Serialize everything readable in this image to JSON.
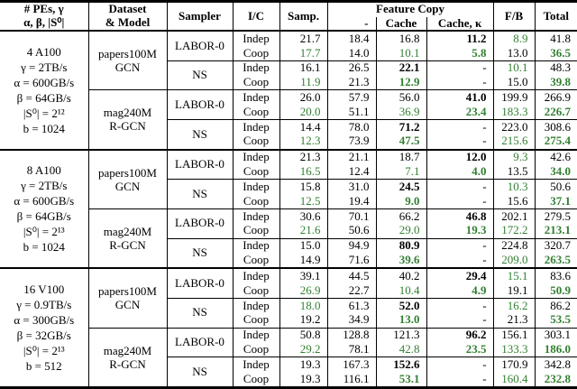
{
  "table": {
    "header": {
      "col1_line1": "# PEs, γ",
      "col1_line2": "α, β, |S⁰|",
      "dataset_line1": "Dataset",
      "dataset_line2": "& Model",
      "sampler": "Sampler",
      "ic": "I/C",
      "samp": "Samp.",
      "feature_copy": "Feature Copy",
      "fc_sub": [
        "-",
        "Cache",
        "Cache, κ"
      ],
      "fb": "F/B",
      "total": "Total"
    },
    "accent_green": "#338033",
    "groups": [
      {
        "config": [
          "4 A100",
          "γ = 2TB/s",
          "α = 600GB/s",
          "β = 64GB/s",
          "|S⁰| = 2¹²",
          "b = 1024"
        ],
        "datasets": [
          [
            "papers100M",
            "GCN"
          ],
          [
            "mag240M",
            "R-GCN"
          ]
        ],
        "samplers": [
          "LABOR-0",
          "NS",
          "LABOR-0",
          "NS"
        ],
        "rows": [
          {
            "ic": "Indep",
            "v": [
              [
                "21.7",
                ""
              ],
              [
                "18.4",
                ""
              ],
              [
                "16.8",
                ""
              ],
              [
                "11.2",
                "b"
              ],
              [
                "8.9",
                "g"
              ],
              [
                "41.8",
                ""
              ]
            ]
          },
          {
            "ic": "Coop",
            "v": [
              [
                "17.7",
                "g"
              ],
              [
                "14.0",
                ""
              ],
              [
                "10.1",
                "g"
              ],
              [
                "5.8",
                "gb"
              ],
              [
                "13.0",
                ""
              ],
              [
                "36.5",
                "gb"
              ]
            ]
          },
          {
            "ic": "Indep",
            "v": [
              [
                "16.1",
                ""
              ],
              [
                "26.5",
                ""
              ],
              [
                "22.1",
                "b"
              ],
              [
                "-",
                ""
              ],
              [
                "10.1",
                "g"
              ],
              [
                "48.3",
                ""
              ]
            ]
          },
          {
            "ic": "Coop",
            "v": [
              [
                "11.9",
                "g"
              ],
              [
                "21.3",
                ""
              ],
              [
                "12.9",
                "gb"
              ],
              [
                "-",
                ""
              ],
              [
                "15.0",
                ""
              ],
              [
                "39.8",
                "gb"
              ]
            ]
          },
          {
            "ic": "Indep",
            "v": [
              [
                "26.0",
                ""
              ],
              [
                "57.9",
                ""
              ],
              [
                "56.0",
                ""
              ],
              [
                "41.0",
                "b"
              ],
              [
                "199.9",
                ""
              ],
              [
                "266.9",
                ""
              ]
            ]
          },
          {
            "ic": "Coop",
            "v": [
              [
                "20.0",
                "g"
              ],
              [
                "51.1",
                ""
              ],
              [
                "36.9",
                "g"
              ],
              [
                "23.4",
                "gb"
              ],
              [
                "183.3",
                "g"
              ],
              [
                "226.7",
                "gb"
              ]
            ]
          },
          {
            "ic": "Indep",
            "v": [
              [
                "14.4",
                ""
              ],
              [
                "78.0",
                ""
              ],
              [
                "71.2",
                "b"
              ],
              [
                "-",
                ""
              ],
              [
                "223.0",
                ""
              ],
              [
                "308.6",
                ""
              ]
            ]
          },
          {
            "ic": "Coop",
            "v": [
              [
                "12.3",
                "g"
              ],
              [
                "73.9",
                ""
              ],
              [
                "47.5",
                "gb"
              ],
              [
                "-",
                ""
              ],
              [
                "215.6",
                "g"
              ],
              [
                "275.4",
                "gb"
              ]
            ]
          }
        ]
      },
      {
        "config": [
          "8 A100",
          "γ = 2TB/s",
          "α = 600GB/s",
          "β = 64GB/s",
          "|S⁰| = 2¹³",
          "b = 1024"
        ],
        "datasets": [
          [
            "papers100M",
            "GCN"
          ],
          [
            "mag240M",
            "R-GCN"
          ]
        ],
        "samplers": [
          "LABOR-0",
          "NS",
          "LABOR-0",
          "NS"
        ],
        "rows": [
          {
            "ic": "Indep",
            "v": [
              [
                "21.3",
                ""
              ],
              [
                "21.1",
                ""
              ],
              [
                "18.7",
                ""
              ],
              [
                "12.0",
                "b"
              ],
              [
                "9.3",
                "g"
              ],
              [
                "42.6",
                ""
              ]
            ]
          },
          {
            "ic": "Coop",
            "v": [
              [
                "16.5",
                "g"
              ],
              [
                "12.4",
                ""
              ],
              [
                "7.1",
                "g"
              ],
              [
                "4.0",
                "gb"
              ],
              [
                "13.5",
                ""
              ],
              [
                "34.0",
                "gb"
              ]
            ]
          },
          {
            "ic": "Indep",
            "v": [
              [
                "15.8",
                ""
              ],
              [
                "31.0",
                ""
              ],
              [
                "24.5",
                "b"
              ],
              [
                "-",
                ""
              ],
              [
                "10.3",
                "g"
              ],
              [
                "50.6",
                ""
              ]
            ]
          },
          {
            "ic": "Coop",
            "v": [
              [
                "12.5",
                "g"
              ],
              [
                "19.4",
                ""
              ],
              [
                "9.0",
                "gb"
              ],
              [
                "-",
                ""
              ],
              [
                "15.6",
                ""
              ],
              [
                "37.1",
                "gb"
              ]
            ]
          },
          {
            "ic": "Indep",
            "v": [
              [
                "30.6",
                ""
              ],
              [
                "70.1",
                ""
              ],
              [
                "66.2",
                ""
              ],
              [
                "46.8",
                "b"
              ],
              [
                "202.1",
                ""
              ],
              [
                "279.5",
                ""
              ]
            ]
          },
          {
            "ic": "Coop",
            "v": [
              [
                "21.6",
                "g"
              ],
              [
                "50.6",
                ""
              ],
              [
                "29.0",
                "g"
              ],
              [
                "19.3",
                "gb"
              ],
              [
                "172.2",
                "g"
              ],
              [
                "213.1",
                "gb"
              ]
            ]
          },
          {
            "ic": "Indep",
            "v": [
              [
                "15.0",
                ""
              ],
              [
                "94.9",
                ""
              ],
              [
                "80.9",
                "b"
              ],
              [
                "-",
                ""
              ],
              [
                "224.8",
                ""
              ],
              [
                "320.7",
                ""
              ]
            ]
          },
          {
            "ic": "Coop",
            "v": [
              [
                "14.9",
                ""
              ],
              [
                "71.6",
                ""
              ],
              [
                "39.6",
                "gb"
              ],
              [
                "-",
                ""
              ],
              [
                "209.0",
                "g"
              ],
              [
                "263.5",
                "gb"
              ]
            ]
          }
        ]
      },
      {
        "config": [
          "16 V100",
          "γ = 0.9TB/s",
          "α = 300GB/s",
          "β = 32GB/s",
          "|S⁰| = 2¹³",
          "b = 512"
        ],
        "datasets": [
          [
            "papers100M",
            "GCN"
          ],
          [
            "mag240M",
            "R-GCN"
          ]
        ],
        "samplers": [
          "LABOR-0",
          "NS",
          "LABOR-0",
          "NS"
        ],
        "rows": [
          {
            "ic": "Indep",
            "v": [
              [
                "39.1",
                ""
              ],
              [
                "44.5",
                ""
              ],
              [
                "40.2",
                ""
              ],
              [
                "29.4",
                "b"
              ],
              [
                "15.1",
                "g"
              ],
              [
                "83.6",
                ""
              ]
            ]
          },
          {
            "ic": "Coop",
            "v": [
              [
                "26.9",
                "g"
              ],
              [
                "22.7",
                ""
              ],
              [
                "10.4",
                "g"
              ],
              [
                "4.9",
                "gb"
              ],
              [
                "19.1",
                ""
              ],
              [
                "50.9",
                "gb"
              ]
            ]
          },
          {
            "ic": "Indep",
            "v": [
              [
                "18.0",
                "g"
              ],
              [
                "61.3",
                ""
              ],
              [
                "52.0",
                "b"
              ],
              [
                "-",
                ""
              ],
              [
                "16.2",
                "g"
              ],
              [
                "86.2",
                ""
              ]
            ]
          },
          {
            "ic": "Coop",
            "v": [
              [
                "19.2",
                ""
              ],
              [
                "34.9",
                ""
              ],
              [
                "13.0",
                "gb"
              ],
              [
                "-",
                ""
              ],
              [
                "21.3",
                ""
              ],
              [
                "53.5",
                "gb"
              ]
            ]
          },
          {
            "ic": "Indep",
            "v": [
              [
                "50.8",
                ""
              ],
              [
                "128.8",
                ""
              ],
              [
                "121.3",
                ""
              ],
              [
                "96.2",
                "b"
              ],
              [
                "156.1",
                ""
              ],
              [
                "303.1",
                ""
              ]
            ]
          },
          {
            "ic": "Coop",
            "v": [
              [
                "29.2",
                "g"
              ],
              [
                "78.1",
                ""
              ],
              [
                "42.8",
                "g"
              ],
              [
                "23.5",
                "gb"
              ],
              [
                "133.3",
                "g"
              ],
              [
                "186.0",
                "gb"
              ]
            ]
          },
          {
            "ic": "Indep",
            "v": [
              [
                "19.3",
                ""
              ],
              [
                "167.3",
                ""
              ],
              [
                "152.6",
                "b"
              ],
              [
                "-",
                ""
              ],
              [
                "170.9",
                ""
              ],
              [
                "342.8",
                ""
              ]
            ]
          },
          {
            "ic": "Coop",
            "v": [
              [
                "19.3",
                ""
              ],
              [
                "116.1",
                ""
              ],
              [
                "53.1",
                "gb"
              ],
              [
                "-",
                ""
              ],
              [
                "160.4",
                "g"
              ],
              [
                "232.8",
                "gb"
              ]
            ]
          }
        ]
      }
    ]
  }
}
